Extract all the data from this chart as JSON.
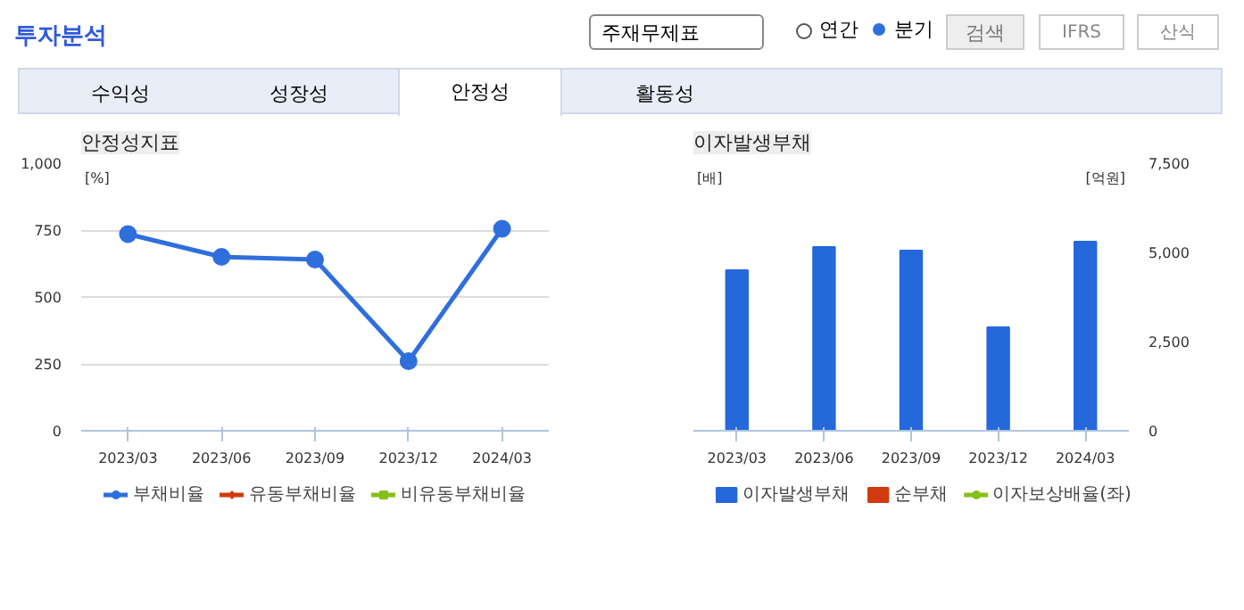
{
  "chart_data": [
    {
      "type": "line",
      "title": "안정성지표",
      "ylabel": "[%]",
      "annotations": [
        "투자분석",
        "주재무제표",
        "연간",
        "분기",
        "검색",
        "IFRS",
        "산식",
        "수익성",
        "성장성",
        "안정성",
        "활동성"
      ],
      "categories": [
        "2023/03",
        "2023/06",
        "2023/09",
        "2023/12",
        "2024/03"
      ],
      "series": [
        {
          "name": "부채비율",
          "color": "#2f6fdc",
          "marker": "circle",
          "values": [
            735,
            650,
            640,
            260,
            755
          ]
        },
        {
          "name": "유동부채비율",
          "color": "#d13b0f",
          "marker": "diamond",
          "values": [
            null,
            null,
            null,
            null,
            null
          ]
        },
        {
          "name": "비유동부채비율",
          "color": "#86bf1a",
          "marker": "square",
          "values": [
            null,
            null,
            null,
            null,
            null
          ]
        }
      ],
      "ylim": [
        0,
        1000
      ],
      "yticks": [
        0,
        250,
        500,
        750,
        {
          "value": 1000,
          "label": "1,000"
        }
      ],
      "grid": "y",
      "legend": "bottom"
    },
    {
      "type": "bar",
      "title": "이자발생부채",
      "ylabel": "[배]",
      "y2label": "[억원]",
      "categories": [
        "2023/03",
        "2023/06",
        "2023/09",
        "2023/12",
        "2024/03"
      ],
      "series": [
        {
          "name": "이자발생부채",
          "color": "#2468dc",
          "axis": "y2",
          "values": [
            4500,
            5150,
            5050,
            2900,
            5300
          ]
        },
        {
          "name": "순부채",
          "color": "#d13b0f",
          "axis": "y2",
          "values": [
            null,
            null,
            null,
            null,
            null
          ]
        },
        {
          "name": "이자보상배율(좌)",
          "type": "line",
          "marker": "circle",
          "color": "#86bf1a",
          "values": [
            null,
            null,
            null,
            null,
            null
          ]
        }
      ],
      "y2lim": [
        0,
        7500
      ],
      "y2ticks": [
        {
          "value": 0,
          "label": "0"
        },
        {
          "value": 2500,
          "label": "2,500"
        },
        {
          "value": 5000,
          "label": "5,000"
        },
        {
          "value": 7500,
          "label": "7,500"
        }
      ],
      "tick_labels": "x",
      "grid": "y",
      "legend": "bottom"
    }
  ]
}
